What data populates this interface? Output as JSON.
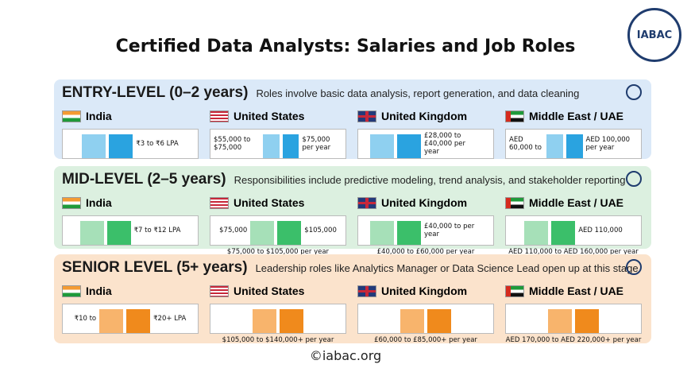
{
  "header": {
    "title": "Certified Data Analysts: Salaries and Job Roles",
    "logo": "IABAC"
  },
  "sections": [
    {
      "title": "ENTRY-LEVEL (0–2 years)",
      "description": "Roles involve basic data analysis, report generation, and data cleaning",
      "regions": [
        {
          "name": "India",
          "labels": [
            "₹3 to ₹6 LPA"
          ]
        },
        {
          "name": "United States",
          "labels": [
            "$55,000 to $75,000",
            "$75,000 per year"
          ]
        },
        {
          "name": "United Kingdom",
          "labels": [
            "£28,000 to £40,000 per year"
          ]
        },
        {
          "name": "Middle East / UAE",
          "labels": [
            "AED 60,000 to",
            "AED 100,000 per year"
          ]
        }
      ]
    },
    {
      "title": "MID-LEVEL (2–5 years)",
      "description": "Responsibilities include predictive modeling, trend analysis, and stakeholder reporting",
      "regions": [
        {
          "name": "India",
          "labels": [
            "₹7 to ₹12 LPA"
          ]
        },
        {
          "name": "United States",
          "labels": [
            "$75,000",
            "$105,000"
          ],
          "caption": "$75,000 to $105,000 per year"
        },
        {
          "name": "United Kingdom",
          "labels": [
            "£40,000 to per year"
          ],
          "caption": "£40,000 to £60,000 per year"
        },
        {
          "name": "Middle East / UAE",
          "labels": [
            "AED 110,000"
          ],
          "caption": "AED 110,000 to AED 160,000 per year"
        }
      ]
    },
    {
      "title": "SENIOR LEVEL (5+ years)",
      "description": "Leadership roles like Analytics Manager or Data Science Lead open up at this stage",
      "regions": [
        {
          "name": "India",
          "labels": [
            "₹10 to",
            "₹20+ LPA"
          ]
        },
        {
          "name": "United States",
          "labels": [],
          "caption": "$105,000 to $140,000+ per year"
        },
        {
          "name": "United Kingdom",
          "labels": [],
          "caption": "£60,000 to £85,000+ per year"
        },
        {
          "name": "Middle East / UAE",
          "labels": [],
          "caption": "AED 170,000 to AED 220,000+ per year"
        }
      ]
    }
  ],
  "footer": "©iabac.org"
}
